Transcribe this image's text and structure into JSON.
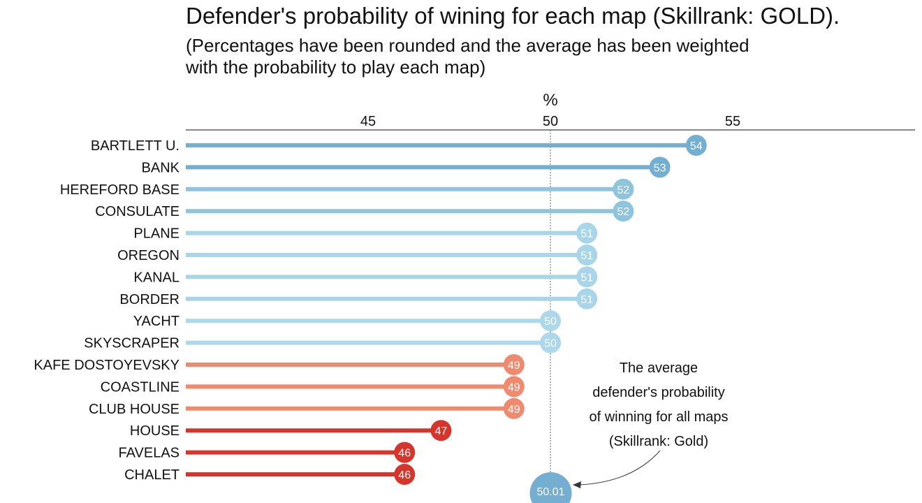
{
  "chart_data": {
    "type": "lollipop",
    "title": "Defender's probability of wining for each map (Skillrank: GOLD).",
    "subtitle_lines": [
      "(Percentages have been rounded and the average has been weighted",
      "with the probability to play each map)"
    ],
    "xlabel": "%",
    "xlim": [
      40,
      60
    ],
    "xticks": [
      45,
      50,
      55
    ],
    "reference_line": 50,
    "categories": [
      "BARTLETT U.",
      "BANK",
      "HEREFORD BASE",
      "CONSULATE",
      "PLANE",
      "OREGON",
      "KANAL",
      "BORDER",
      "YACHT",
      "SKYSCRAPER",
      "KAFE DOSTOYEVSKY",
      "COASTLINE",
      "CLUB HOUSE",
      "HOUSE",
      "FAVELAS",
      "CHALET"
    ],
    "values": [
      54,
      53,
      52,
      52,
      51,
      51,
      51,
      51,
      50,
      50,
      49,
      49,
      49,
      47,
      46,
      46
    ],
    "color_scale": {
      "54": "#74aed1",
      "53": "#74aed1",
      "52": "#8fc4dd",
      "51": "#a8d6e8",
      "50": "#acd8e9",
      "49": "#ef8a6e",
      "47": "#d6352b",
      "46": "#d6352b"
    },
    "average": {
      "value": 50.01,
      "label": "50.01",
      "color": "#74aed1"
    },
    "annotation_lines": [
      "The average",
      "defender's probability",
      "of winning for all maps",
      "(Skillrank: Gold)"
    ]
  }
}
